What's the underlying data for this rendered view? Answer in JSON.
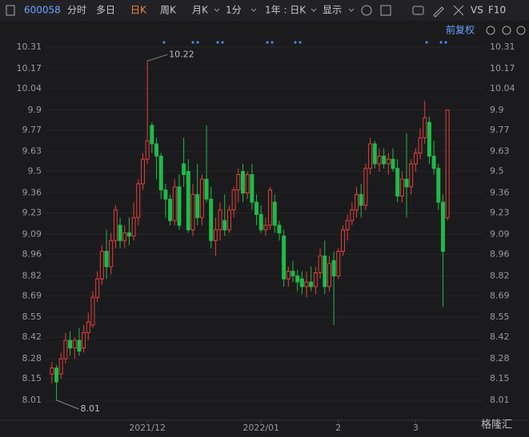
{
  "toolbar": {
    "code": "600058",
    "tabs": [
      "分时",
      "多日",
      "日K",
      "周K",
      "月K",
      "1分"
    ],
    "period": "1年 : 日K",
    "display": "显示",
    "vs": "VS",
    "f10": "F10",
    "adjust": "前复权"
  },
  "watermark": "格隆汇",
  "chart_data": {
    "type": "candlestick",
    "up_color": "#e5403b",
    "down_color": "#1fba4a",
    "categories": [
      null,
      null,
      null,
      null,
      null,
      null,
      null,
      null,
      null,
      null,
      null,
      null,
      null,
      null,
      null,
      null,
      null,
      null,
      null,
      null,
      null,
      "2021/12",
      null,
      null,
      null,
      null,
      null,
      null,
      null,
      null,
      null,
      null,
      null,
      null,
      null,
      null,
      null,
      null,
      null,
      null,
      null,
      null,
      null,
      null,
      null,
      null,
      "2022/01",
      null,
      null,
      null,
      null,
      null,
      null,
      null,
      null,
      null,
      null,
      null,
      null,
      null,
      null,
      null,
      null,
      "2",
      null,
      null,
      null,
      null,
      null,
      null,
      null,
      null,
      null,
      null,
      null,
      null,
      null,
      null,
      null,
      null,
      "3",
      null,
      null,
      null,
      null,
      null,
      null,
      null
    ],
    "open": [
      8.18,
      8.22,
      8.18,
      8.28,
      8.4,
      8.35,
      8.4,
      8.35,
      8.45,
      8.5,
      8.68,
      8.8,
      8.98,
      8.88,
      9.05,
      9.15,
      9.05,
      9.1,
      9.08,
      9.2,
      9.42,
      9.58,
      9.8,
      9.68,
      9.6,
      9.38,
      9.32,
      9.18,
      9.4,
      9.55,
      9.5,
      9.12,
      9.35,
      9.2,
      9.45,
      9.32,
      9.05,
      9.12,
      9.18,
      9.12,
      9.25,
      9.38,
      9.5,
      9.36,
      9.48,
      9.3,
      9.22,
      9.12,
      9.15,
      9.3,
      9.15,
      9.08,
      8.8,
      8.85,
      8.82,
      8.8,
      8.75,
      8.78,
      8.75,
      8.84,
      8.95,
      8.75,
      8.92,
      8.82,
      8.98,
      9.12,
      9.18,
      9.25,
      9.35,
      9.28,
      9.52,
      9.68,
      9.55,
      9.6,
      9.55,
      9.58,
      9.52,
      9.34,
      9.45,
      9.4,
      9.55,
      9.62,
      9.72,
      9.82,
      9.6,
      9.52,
      9.3,
      9.2
    ],
    "high": [
      8.26,
      8.24,
      8.32,
      8.45,
      8.46,
      8.42,
      8.48,
      8.5,
      8.58,
      8.72,
      8.85,
      9.02,
      9.12,
      9.1,
      9.28,
      9.2,
      9.15,
      9.2,
      9.3,
      9.45,
      9.62,
      10.22,
      9.82,
      9.72,
      9.62,
      9.42,
      9.35,
      9.45,
      9.48,
      9.72,
      9.58,
      9.42,
      9.55,
      9.48,
      9.8,
      9.4,
      9.2,
      9.3,
      9.35,
      9.28,
      9.4,
      9.52,
      9.55,
      9.5,
      9.55,
      9.35,
      9.28,
      9.2,
      9.4,
      9.35,
      9.18,
      9.12,
      8.88,
      8.92,
      8.86,
      8.85,
      8.85,
      8.88,
      8.88,
      9.0,
      9.05,
      8.95,
      8.98,
      9.0,
      9.15,
      9.22,
      9.3,
      9.4,
      9.42,
      9.55,
      9.72,
      9.7,
      9.65,
      9.65,
      9.62,
      9.65,
      9.58,
      9.5,
      9.75,
      9.58,
      9.65,
      9.78,
      9.96,
      9.86,
      9.7,
      9.55,
      9.35,
      9.9
    ],
    "low": [
      8.12,
      8.01,
      8.15,
      8.25,
      8.3,
      8.28,
      8.3,
      8.32,
      8.4,
      8.48,
      8.65,
      8.76,
      8.8,
      8.83,
      9.0,
      9.0,
      9.0,
      9.02,
      9.05,
      9.15,
      9.38,
      9.55,
      9.62,
      9.45,
      9.32,
      9.2,
      9.15,
      9.15,
      9.12,
      9.4,
      9.1,
      9.08,
      9.15,
      9.15,
      9.3,
      9.0,
      8.95,
      9.05,
      9.08,
      9.1,
      9.2,
      9.3,
      9.3,
      9.32,
      9.25,
      9.15,
      9.1,
      9.08,
      9.12,
      9.1,
      9.05,
      8.75,
      8.75,
      8.78,
      8.72,
      8.7,
      8.68,
      8.72,
      8.7,
      8.8,
      8.7,
      8.72,
      8.5,
      8.8,
      8.95,
      9.05,
      9.15,
      9.2,
      9.2,
      9.25,
      9.48,
      9.52,
      9.5,
      9.52,
      9.48,
      9.5,
      9.3,
      9.3,
      9.2,
      9.35,
      9.5,
      9.58,
      9.68,
      9.55,
      9.48,
      9.25,
      8.62,
      9.18
    ],
    "close": [
      8.22,
      8.13,
      8.28,
      8.4,
      8.35,
      8.4,
      8.33,
      8.45,
      8.52,
      8.68,
      8.8,
      8.98,
      8.88,
      9.05,
      9.25,
      9.05,
      9.1,
      9.08,
      9.2,
      9.42,
      9.58,
      9.7,
      9.68,
      9.6,
      9.38,
      9.32,
      9.18,
      9.4,
      9.15,
      9.48,
      9.12,
      9.35,
      9.2,
      9.45,
      9.32,
      9.05,
      9.12,
      9.25,
      9.12,
      9.25,
      9.38,
      9.48,
      9.36,
      9.48,
      9.3,
      9.22,
      9.12,
      9.15,
      9.38,
      9.15,
      9.1,
      8.8,
      8.85,
      8.82,
      8.78,
      8.75,
      8.78,
      8.75,
      8.84,
      8.95,
      8.75,
      8.9,
      8.82,
      8.98,
      9.12,
      9.18,
      9.25,
      9.35,
      9.28,
      9.52,
      9.68,
      9.55,
      9.6,
      9.55,
      9.58,
      9.52,
      9.34,
      9.45,
      9.4,
      9.55,
      9.62,
      9.72,
      9.85,
      9.6,
      9.52,
      9.3,
      8.98,
      9.9
    ],
    "ylim": [
      8.01,
      10.31
    ],
    "yticks": [
      8.01,
      8.15,
      8.28,
      8.42,
      8.55,
      8.69,
      8.82,
      8.96,
      9.09,
      9.23,
      9.36,
      9.5,
      9.63,
      9.77,
      9.9,
      10.04,
      10.17,
      10.31
    ],
    "grid": true
  }
}
